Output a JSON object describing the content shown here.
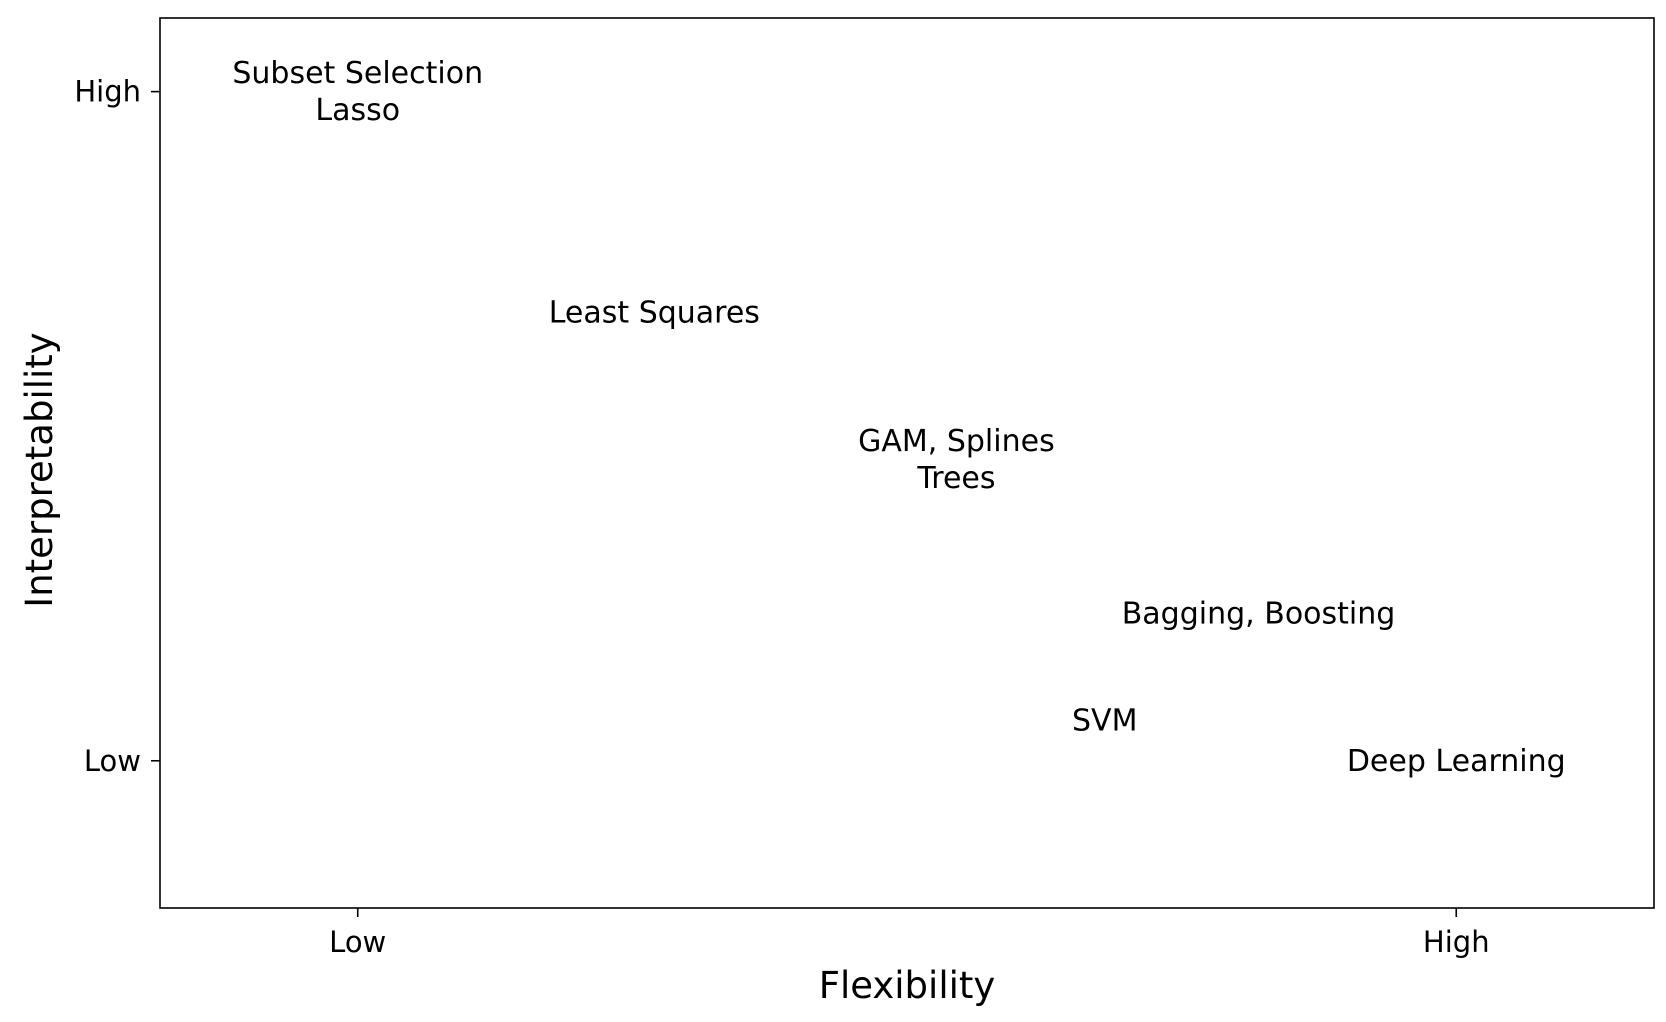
{
  "chart_data": {
    "type": "scatter",
    "title": "",
    "xlabel": "Flexibility",
    "ylabel": "Interpretability",
    "xlim": [
      -0.18,
      1.18
    ],
    "ylim": [
      -0.22,
      1.11
    ],
    "x_ticks": [
      {
        "value": 0,
        "label": "Low"
      },
      {
        "value": 1,
        "label": "High"
      }
    ],
    "y_ticks": [
      {
        "value": 0,
        "label": "Low"
      },
      {
        "value": 1,
        "label": "High"
      }
    ],
    "grid": false,
    "legend": "none",
    "points": [
      {
        "x": 0.0,
        "y": 1.0,
        "lines": [
          "Subset Selection",
          "Lasso"
        ]
      },
      {
        "x": 0.27,
        "y": 0.67,
        "lines": [
          "Least Squares"
        ]
      },
      {
        "x": 0.545,
        "y": 0.45,
        "lines": [
          "GAM, Splines",
          "Trees"
        ]
      },
      {
        "x": 0.82,
        "y": 0.22,
        "lines": [
          "Bagging, Boosting"
        ]
      },
      {
        "x": 0.68,
        "y": 0.06,
        "lines": [
          "SVM"
        ]
      },
      {
        "x": 1.0,
        "y": 0.0,
        "lines": [
          "Deep Learning"
        ]
      }
    ]
  }
}
